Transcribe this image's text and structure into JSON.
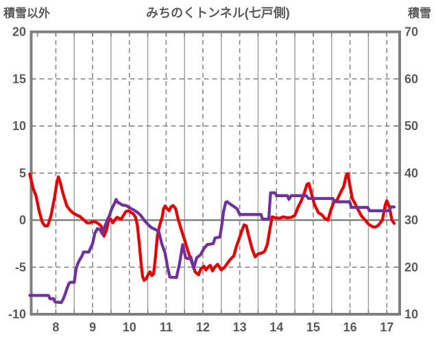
{
  "title": "みちのくトンネル(七戸側)",
  "left_axis_label": "積雪以外",
  "right_axis_label": "積雪",
  "chart_data": {
    "type": "line",
    "title": "みちのくトンネル(七戸側)",
    "colors": {
      "frame": "#7f7f7f",
      "grid_major_dashed": "#8f8f8f",
      "grid_minor_solid": "#9b9b9b",
      "zero_line": "#808080",
      "text": "#595959"
    },
    "x_axis": {
      "ticks": [
        8,
        9,
        10,
        11,
        12,
        13,
        14,
        15,
        16,
        17
      ],
      "range": [
        7.33,
        17.35
      ],
      "major_gridlines": [
        8,
        9,
        10,
        11,
        12,
        13,
        14,
        15,
        16,
        17
      ],
      "minor_gridlines": [
        8.5,
        9.5,
        10.5,
        11.5,
        12.5,
        13.5,
        14.5,
        15.5,
        16.5
      ],
      "edge_tick_start": 7.5,
      "edge_tick_step": 0.5,
      "edge_tick_end": 17.0
    },
    "left_y_axis": {
      "label": "積雪以外",
      "ticks": [
        20,
        15,
        10,
        5,
        0,
        -5,
        -10
      ],
      "range": [
        -10,
        20
      ],
      "dashed_gridlines": [
        15,
        10,
        5,
        -5
      ],
      "zero_line_value": 0
    },
    "right_y_axis": {
      "label": "積雪",
      "ticks": [
        70,
        60,
        50,
        40,
        30,
        20,
        10
      ],
      "range": [
        10,
        70
      ]
    },
    "grid": {
      "horizontal": "dashed",
      "vertical_hours": "dashed",
      "vertical_half_hours": "solid"
    },
    "legend": "none",
    "series": [
      {
        "name": "積雪以外",
        "axis": "left",
        "color": "#ee0000",
        "points": [
          [
            7.29,
            4.9
          ],
          [
            7.38,
            3.4
          ],
          [
            7.46,
            2.6
          ],
          [
            7.55,
            0.9
          ],
          [
            7.63,
            -0.2
          ],
          [
            7.7,
            -0.6
          ],
          [
            7.78,
            -0.6
          ],
          [
            7.87,
            0.5
          ],
          [
            7.96,
            2.3
          ],
          [
            8.03,
            4.0
          ],
          [
            8.07,
            4.6
          ],
          [
            8.12,
            4.0
          ],
          [
            8.19,
            2.9
          ],
          [
            8.3,
            1.5
          ],
          [
            8.4,
            1.0
          ],
          [
            8.47,
            0.75
          ],
          [
            8.56,
            0.55
          ],
          [
            8.65,
            0.4
          ],
          [
            8.77,
            0.0
          ],
          [
            8.85,
            -0.3
          ],
          [
            8.93,
            -0.3
          ],
          [
            9.0,
            -0.15
          ],
          [
            9.08,
            -0.2
          ],
          [
            9.17,
            -0.4
          ],
          [
            9.24,
            -0.7
          ],
          [
            9.31,
            -1.7
          ],
          [
            9.38,
            -1.0
          ],
          [
            9.44,
            0.0
          ],
          [
            9.49,
            0.1
          ],
          [
            9.55,
            -0.3
          ],
          [
            9.6,
            0.0
          ],
          [
            9.66,
            0.3
          ],
          [
            9.72,
            0.2
          ],
          [
            9.78,
            0.1
          ],
          [
            9.84,
            0.5
          ],
          [
            9.9,
            0.9
          ],
          [
            9.98,
            1.0
          ],
          [
            10.05,
            0.8
          ],
          [
            10.11,
            0.65
          ],
          [
            10.17,
            0.3
          ],
          [
            10.22,
            -0.6
          ],
          [
            10.27,
            -2.5
          ],
          [
            10.31,
            -4.3
          ],
          [
            10.36,
            -6.0
          ],
          [
            10.4,
            -6.4
          ],
          [
            10.46,
            -6.2
          ],
          [
            10.52,
            -5.7
          ],
          [
            10.56,
            -5.5
          ],
          [
            10.61,
            -5.9
          ],
          [
            10.66,
            -5.7
          ],
          [
            10.71,
            -3.9
          ],
          [
            10.76,
            -1.7
          ],
          [
            10.82,
            -0.6
          ],
          [
            10.89,
            0.3
          ],
          [
            10.93,
            1.2
          ],
          [
            10.97,
            1.5
          ],
          [
            11.03,
            1.2
          ],
          [
            11.08,
            1.0
          ],
          [
            11.13,
            1.4
          ],
          [
            11.19,
            1.55
          ],
          [
            11.26,
            1.2
          ],
          [
            11.32,
            0.2
          ],
          [
            11.41,
            -1.0
          ],
          [
            11.51,
            -2.2
          ],
          [
            11.6,
            -3.4
          ],
          [
            11.69,
            -4.4
          ],
          [
            11.79,
            -5.5
          ],
          [
            11.88,
            -5.8
          ],
          [
            11.94,
            -5.2
          ],
          [
            12.03,
            -4.9
          ],
          [
            12.08,
            -5.3
          ],
          [
            12.14,
            -5.0
          ],
          [
            12.2,
            -4.8
          ],
          [
            12.26,
            -5.4
          ],
          [
            12.32,
            -5.0
          ],
          [
            12.4,
            -4.7
          ],
          [
            12.5,
            -5.3
          ],
          [
            12.59,
            -5.0
          ],
          [
            12.68,
            -4.5
          ],
          [
            12.76,
            -4.1
          ],
          [
            12.84,
            -3.8
          ],
          [
            12.91,
            -2.8
          ],
          [
            13.0,
            -1.8
          ],
          [
            13.06,
            -1.1
          ],
          [
            13.12,
            -0.5
          ],
          [
            13.18,
            -0.6
          ],
          [
            13.24,
            -1.6
          ],
          [
            13.34,
            -3.1
          ],
          [
            13.42,
            -3.9
          ],
          [
            13.5,
            -3.6
          ],
          [
            13.6,
            -3.5
          ],
          [
            13.68,
            -3.3
          ],
          [
            13.75,
            -2.6
          ],
          [
            13.81,
            -1.2
          ],
          [
            13.88,
            0.35
          ],
          [
            13.97,
            0.25
          ],
          [
            14.08,
            0.2
          ],
          [
            14.19,
            0.35
          ],
          [
            14.3,
            0.25
          ],
          [
            14.41,
            0.3
          ],
          [
            14.5,
            0.5
          ],
          [
            14.59,
            1.4
          ],
          [
            14.67,
            2.0
          ],
          [
            14.75,
            2.8
          ],
          [
            14.83,
            3.8
          ],
          [
            14.88,
            3.9
          ],
          [
            14.96,
            2.7
          ],
          [
            15.03,
            1.7
          ],
          [
            15.14,
            0.8
          ],
          [
            15.24,
            0.55
          ],
          [
            15.31,
            0.2
          ],
          [
            15.4,
            0.0
          ],
          [
            15.48,
            1.1
          ],
          [
            15.57,
            2.0
          ],
          [
            15.65,
            2.15
          ],
          [
            15.74,
            2.9
          ],
          [
            15.83,
            3.6
          ],
          [
            15.9,
            4.8
          ],
          [
            15.94,
            4.95
          ],
          [
            16.0,
            3.6
          ],
          [
            16.06,
            2.3
          ],
          [
            16.13,
            1.8
          ],
          [
            16.22,
            1.1
          ],
          [
            16.31,
            0.45
          ],
          [
            16.41,
            0.0
          ],
          [
            16.51,
            -0.45
          ],
          [
            16.61,
            -0.7
          ],
          [
            16.69,
            -0.75
          ],
          [
            16.77,
            -0.55
          ],
          [
            16.88,
            0.0
          ],
          [
            16.96,
            1.65
          ],
          [
            17.0,
            2.05
          ],
          [
            17.07,
            1.4
          ],
          [
            17.14,
            0.0
          ],
          [
            17.2,
            -0.35
          ]
        ]
      },
      {
        "name": "積雪",
        "axis": "right",
        "color": "#7030a0",
        "points": [
          [
            7.29,
            14.0
          ],
          [
            7.8,
            14.0
          ],
          [
            7.84,
            13.3
          ],
          [
            7.94,
            13.3
          ],
          [
            7.98,
            12.6
          ],
          [
            8.15,
            12.5
          ],
          [
            8.21,
            13.4
          ],
          [
            8.25,
            14.2
          ],
          [
            8.3,
            15.4
          ],
          [
            8.36,
            16.6
          ],
          [
            8.4,
            16.8
          ],
          [
            8.5,
            16.8
          ],
          [
            8.55,
            19.6
          ],
          [
            8.6,
            20.8
          ],
          [
            8.65,
            21.6
          ],
          [
            8.7,
            22.2
          ],
          [
            8.75,
            23.2
          ],
          [
            8.9,
            23.2
          ],
          [
            8.95,
            24.2
          ],
          [
            9.0,
            25.0
          ],
          [
            9.06,
            27.2
          ],
          [
            9.13,
            28.2
          ],
          [
            9.2,
            28.0
          ],
          [
            9.27,
            27.0
          ],
          [
            9.34,
            28.8
          ],
          [
            9.4,
            30.0
          ],
          [
            9.46,
            31.0
          ],
          [
            9.51,
            32.2
          ],
          [
            9.56,
            33.0
          ],
          [
            9.61,
            33.8
          ],
          [
            9.64,
            34.4
          ],
          [
            9.68,
            33.8
          ],
          [
            9.73,
            33.6
          ],
          [
            9.81,
            33.2
          ],
          [
            9.91,
            33.1
          ],
          [
            10.01,
            32.6
          ],
          [
            10.11,
            32.2
          ],
          [
            10.21,
            31.7
          ],
          [
            10.31,
            31.0
          ],
          [
            10.4,
            30.0
          ],
          [
            10.49,
            29.2
          ],
          [
            10.6,
            28.4
          ],
          [
            10.71,
            28.0
          ],
          [
            10.8,
            27.6
          ],
          [
            10.88,
            25.0
          ],
          [
            10.97,
            23.0
          ],
          [
            11.04,
            20.0
          ],
          [
            11.1,
            17.9
          ],
          [
            11.28,
            17.8
          ],
          [
            11.36,
            20.6
          ],
          [
            11.45,
            24.8
          ],
          [
            11.53,
            22.0
          ],
          [
            11.6,
            21.8
          ],
          [
            11.67,
            22.2
          ],
          [
            11.75,
            19.8
          ],
          [
            11.83,
            22.0
          ],
          [
            11.93,
            22.6
          ],
          [
            12.03,
            24.0
          ],
          [
            12.12,
            24.8
          ],
          [
            12.28,
            25.0
          ],
          [
            12.33,
            26.2
          ],
          [
            12.46,
            26.4
          ],
          [
            12.51,
            28.8
          ],
          [
            12.56,
            31.8
          ],
          [
            12.62,
            33.8
          ],
          [
            12.66,
            33.9
          ],
          [
            12.74,
            33.4
          ],
          [
            12.84,
            32.9
          ],
          [
            12.93,
            32.4
          ],
          [
            13.0,
            31.2
          ],
          [
            13.58,
            31.2
          ],
          [
            13.62,
            30.2
          ],
          [
            13.79,
            30.2
          ],
          [
            13.84,
            35.8
          ],
          [
            13.96,
            35.8
          ],
          [
            14.0,
            35.2
          ],
          [
            14.3,
            35.2
          ],
          [
            14.34,
            34.4
          ],
          [
            14.4,
            35.2
          ],
          [
            14.81,
            35.2
          ],
          [
            14.87,
            34.6
          ],
          [
            15.53,
            34.6
          ],
          [
            15.58,
            33.9
          ],
          [
            15.99,
            33.9
          ],
          [
            16.04,
            32.7
          ],
          [
            16.48,
            32.7
          ],
          [
            16.53,
            32.0
          ],
          [
            17.07,
            32.0
          ],
          [
            17.11,
            32.8
          ],
          [
            17.2,
            32.8
          ]
        ]
      }
    ]
  }
}
